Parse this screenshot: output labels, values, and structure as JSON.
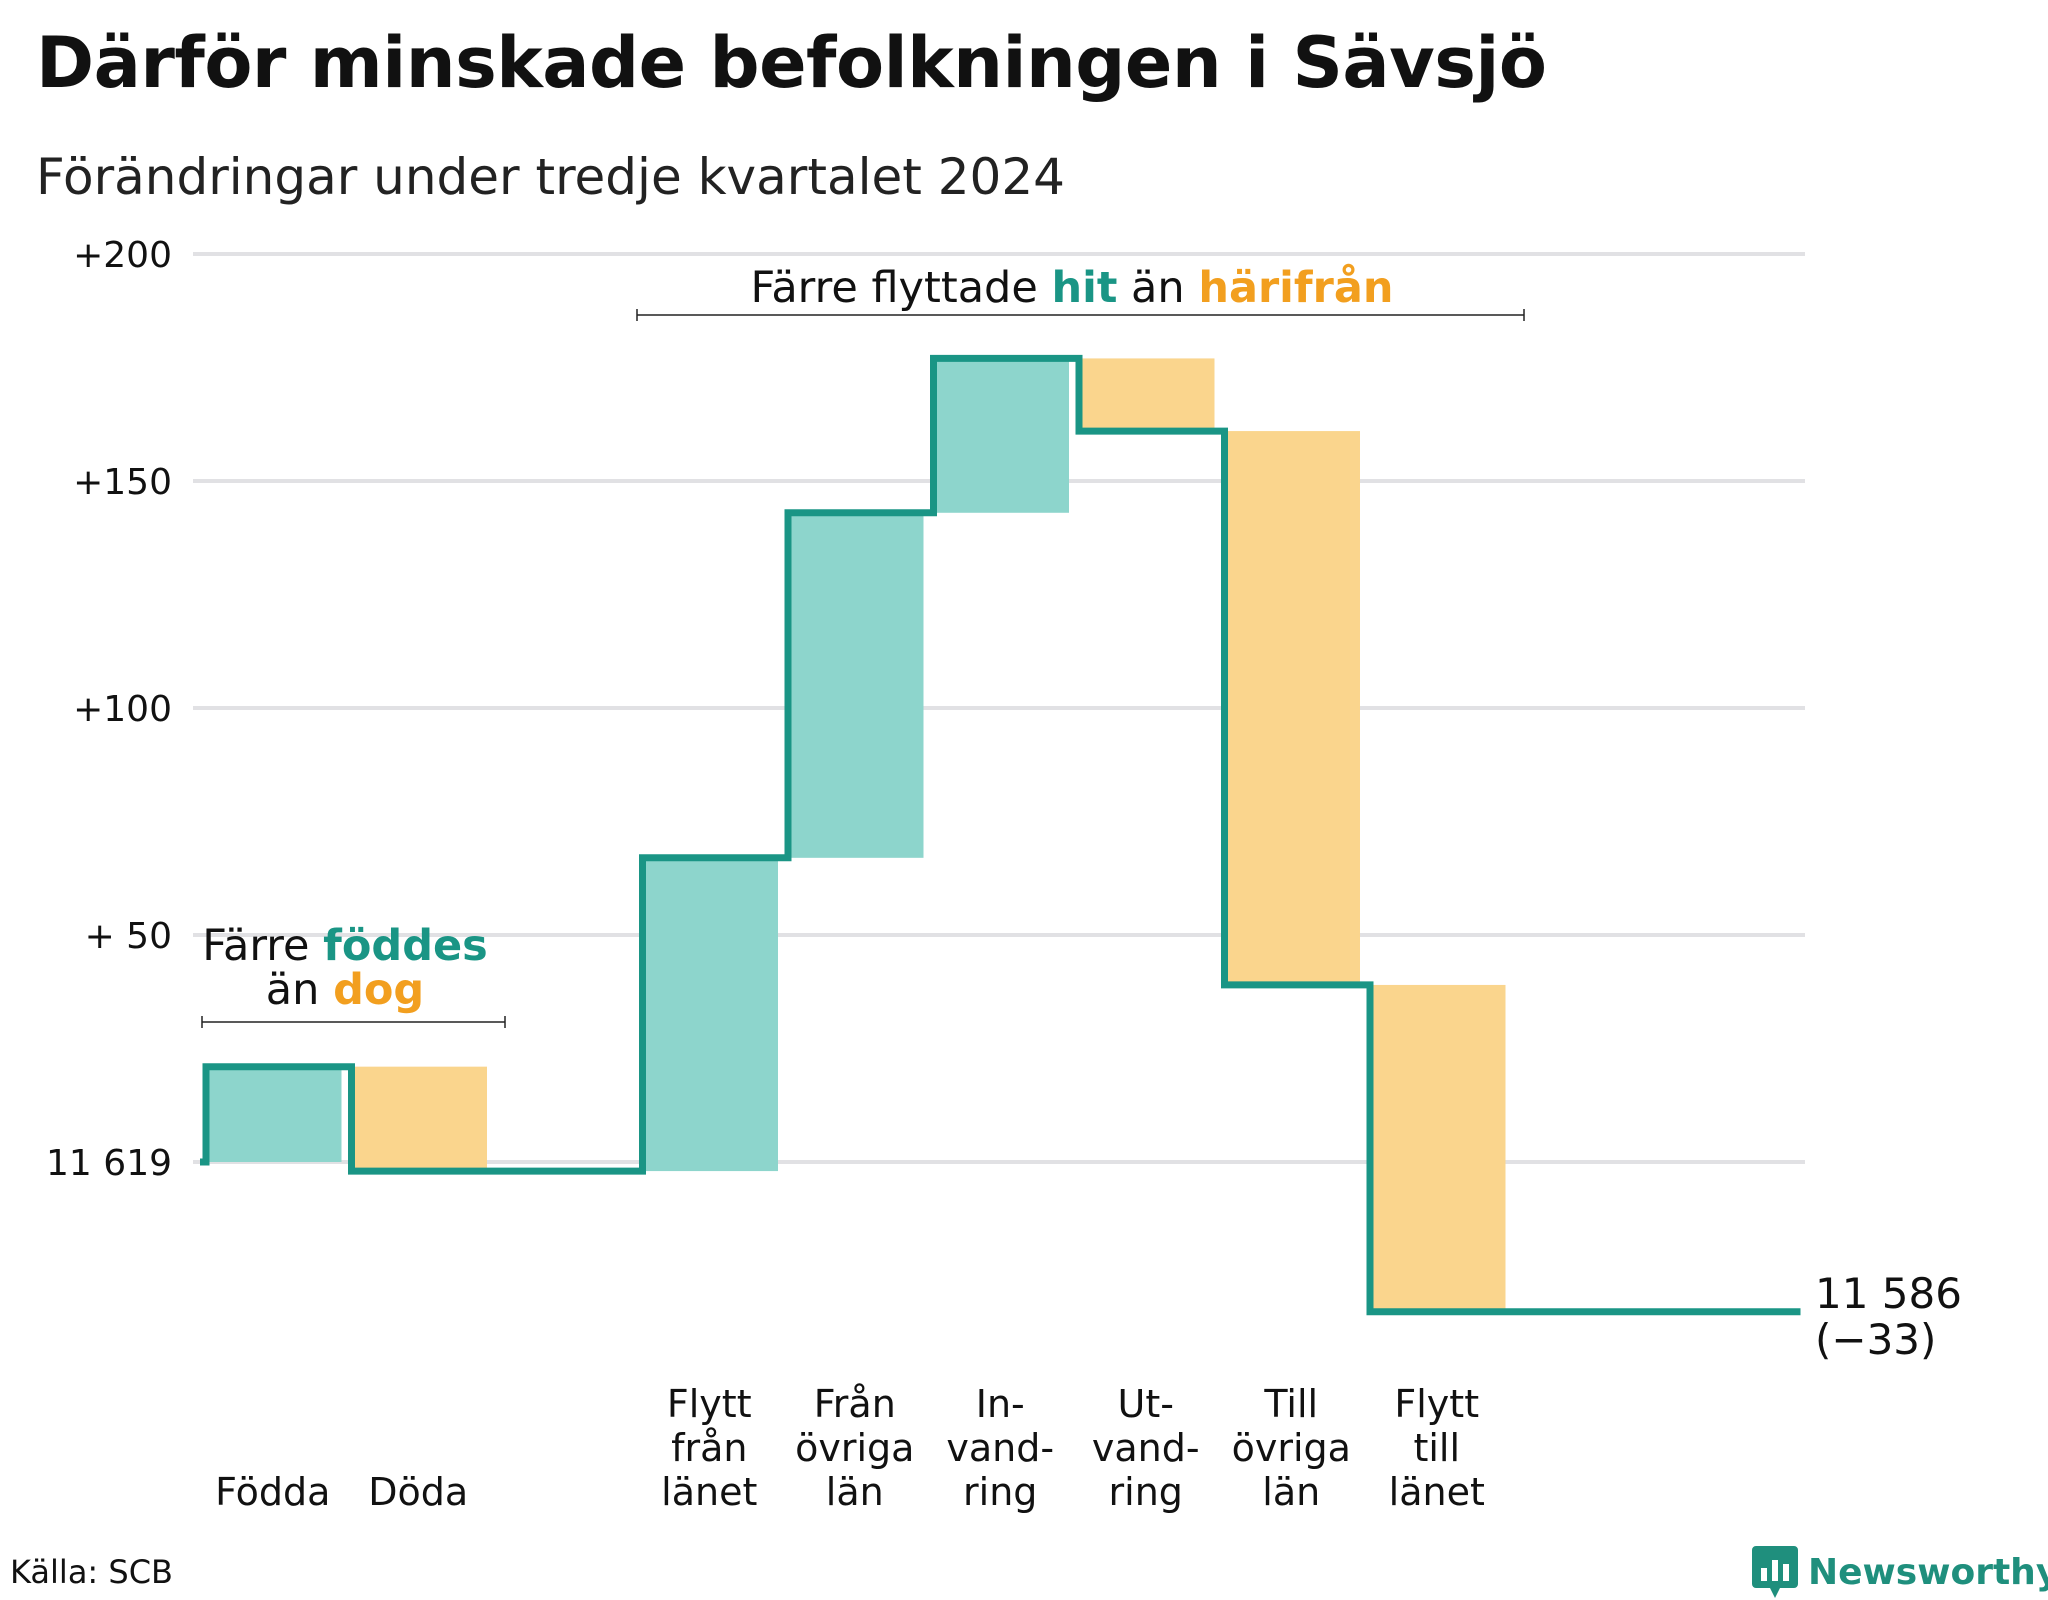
{
  "title": "Därför minskade befolkningen i Sävsjö",
  "subtitle": "Förändringar under tredje kvartalet 2024",
  "source": "Källa: SCB",
  "brand": "Newsworthy",
  "colors": {
    "increase": "#8dd5cc",
    "decrease": "#fad58d",
    "line": "#1a9585",
    "teal_text": "#1a9585",
    "orange_text": "#f29f1f",
    "grid": "#e1e1e4"
  },
  "annotations": {
    "births_line1_a": "Färre ",
    "births_line1_b": "föddes",
    "births_line2_a": "än ",
    "births_line2_b": "dog",
    "migration_a": "Färre flyttade ",
    "migration_b": "hit",
    "migration_c": " än ",
    "migration_d": "härifrån"
  },
  "chart_data": {
    "type": "waterfall",
    "title": "Därför minskade befolkningen i Sävsjö",
    "subtitle": "Förändringar under tredje kvartalet 2024",
    "start_value": 11619,
    "end_value": 11586,
    "net_change": -33,
    "start_label": "11 619",
    "end_label_line1": "11 586",
    "end_label_line2": "(−33)",
    "y_ticks": [
      {
        "offset": 0,
        "label": "11 619"
      },
      {
        "offset": 50,
        "label": "+ 50"
      },
      {
        "offset": 100,
        "label": "+100"
      },
      {
        "offset": 150,
        "label": "+150"
      },
      {
        "offset": 200,
        "label": "+200"
      }
    ],
    "ylim": [
      -33,
      200
    ],
    "grid": true,
    "steps": [
      {
        "label_lines": [
          "Födda"
        ],
        "change": 21,
        "kind": "increase"
      },
      {
        "label_lines": [
          "Döda"
        ],
        "change": -23,
        "kind": "decrease"
      },
      {
        "label_lines": [
          ""
        ],
        "change": 0,
        "kind": "none"
      },
      {
        "label_lines": [
          "Flytt",
          "från",
          "länet"
        ],
        "change": 69,
        "kind": "increase"
      },
      {
        "label_lines": [
          "Från",
          "övriga",
          "län"
        ],
        "change": 76,
        "kind": "increase"
      },
      {
        "label_lines": [
          "In-",
          "vand-",
          "ring"
        ],
        "change": 34,
        "kind": "increase"
      },
      {
        "label_lines": [
          "Ut-",
          "vand-",
          "ring"
        ],
        "change": -16,
        "kind": "decrease"
      },
      {
        "label_lines": [
          "Till",
          "övriga",
          "län"
        ],
        "change": -122,
        "kind": "decrease"
      },
      {
        "label_lines": [
          "Flytt",
          "till",
          "länet"
        ],
        "change": -72,
        "kind": "decrease"
      },
      {
        "label_lines": [
          ""
        ],
        "change": 0,
        "kind": "none"
      },
      {
        "label_lines": [
          ""
        ],
        "change": 0,
        "kind": "none"
      }
    ]
  }
}
